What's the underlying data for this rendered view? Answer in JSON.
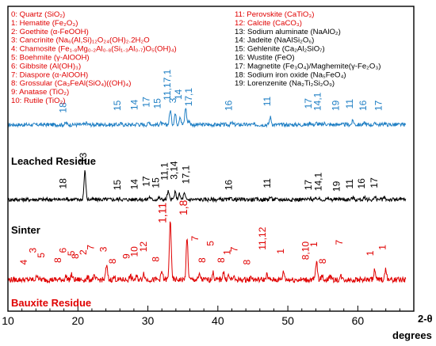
{
  "chart_data": {
    "type": "line",
    "x_unit_label": "2-θ",
    "x_title": "degrees",
    "xlim": [
      10,
      68
    ],
    "xticks": [
      10,
      20,
      30,
      40,
      50,
      60
    ],
    "colors": {
      "blue": "#1f7fc4",
      "black": "#000000",
      "red": "#e00000"
    },
    "legend_left": [
      "0: Quartz (SiO₂)",
      "1: Hematite (Fe₂O₃)",
      "2: Goethite (α-FeOOH)",
      "3: Cancrinite (Na₆(Al,Si)₁₂O₂₄(OH)₂.2H₂O",
      "4: Chamosite (Fe₁.₈Mg₀.₂Al₀.₈(Si₁.₃Al₀.₇)O₅(OH)₄)",
      "5: Boehmite (γ-AlOOH)",
      "6: Gibbsite (Al(OH)₃)",
      "7: Diaspore (α-AlOOH)",
      "8: Grossular (Ca₃FeAl(SiO₄)((OH)₄)",
      "9: Anatase (TiO₂)",
      "10: Rutile (TiO₂)"
    ],
    "legend_right": [
      {
        "text": "11: Perovskite (CaTiO₃)",
        "color": "red"
      },
      {
        "text": "12: Calcite (CaCO₃)",
        "color": "red"
      },
      {
        "text": "13: Sodium aluminate (NaAlO₂)",
        "color": "black"
      },
      {
        "text": "14: Jadeite (NaAlSi₂O₆)",
        "color": "black"
      },
      {
        "text": "15: Gehlenite (Ca₂Al₂SiO₇)",
        "color": "black"
      },
      {
        "text": "16: Wustite (FeO)",
        "color": "black"
      },
      {
        "text": "17: Magnetite (Fe₃O₄)/Maghemite(γ-Fe₂O₃)",
        "color": "black"
      },
      {
        "text": "18: Sodium iron oxide (Na₅FeO₄)",
        "color": "black"
      },
      {
        "text": "19: Lorenzenite (Na₂Ti₂Si₂O₉)",
        "color": "black"
      }
    ],
    "series": [
      {
        "name": "Leached Residue",
        "color": "blue",
        "baseline": 0.4,
        "peaks": [
          [
            18.3,
            0.05
          ],
          [
            21.2,
            0.05
          ],
          [
            26.1,
            0.03
          ],
          [
            28.5,
            0.04
          ],
          [
            30.2,
            0.08
          ],
          [
            31.8,
            0.05
          ],
          [
            33.2,
            0.42
          ],
          [
            33.9,
            0.32
          ],
          [
            34.6,
            0.25
          ],
          [
            35.4,
            0.5
          ],
          [
            35.9,
            0.12
          ],
          [
            42.0,
            0.05
          ],
          [
            47.5,
            0.22
          ],
          [
            53.2,
            0.07
          ],
          [
            54.1,
            0.05
          ],
          [
            55.3,
            0.05
          ],
          [
            57.4,
            0.03
          ],
          [
            59.3,
            0.12
          ],
          [
            61.0,
            0.05
          ],
          [
            62.6,
            0.05
          ],
          [
            63.8,
            0.05
          ]
        ],
        "labels": [
          {
            "text": "18",
            "x": 18.3,
            "y": 0.74
          },
          {
            "text": "15",
            "x": 26.1,
            "y": 0.8
          },
          {
            "text": "14",
            "x": 28.5,
            "y": 0.82
          },
          {
            "text": "17",
            "x": 30.2,
            "y": 0.9
          },
          {
            "text": "15",
            "x": 31.8,
            "y": 0.86
          },
          {
            "text": "11,17,1",
            "x": 33.2,
            "y": 1.1
          },
          {
            "text": "3",
            "x": 34.0,
            "y": 1.02
          },
          {
            "text": "14",
            "x": 34.8,
            "y": 1.12
          },
          {
            "text": "17,1",
            "x": 36.3,
            "y": 0.93
          },
          {
            "text": "16",
            "x": 42.0,
            "y": 0.8
          },
          {
            "text": "11",
            "x": 47.5,
            "y": 0.93
          },
          {
            "text": "17",
            "x": 53.4,
            "y": 0.86
          },
          {
            "text": "14,1",
            "x": 54.7,
            "y": 0.8
          },
          {
            "text": "19",
            "x": 57.3,
            "y": 0.8
          },
          {
            "text": "11",
            "x": 59.3,
            "y": 0.86
          },
          {
            "text": "16",
            "x": 61.2,
            "y": 0.8
          },
          {
            "text": "17",
            "x": 63.4,
            "y": 0.8
          }
        ]
      },
      {
        "name": "Sinter",
        "color": "black",
        "baseline": 0.4,
        "peaks": [
          [
            18.3,
            0.04
          ],
          [
            21.0,
            0.8
          ],
          [
            26.0,
            0.03
          ],
          [
            28.3,
            0.04
          ],
          [
            30.2,
            0.08
          ],
          [
            31.6,
            0.05
          ],
          [
            32.9,
            0.22
          ],
          [
            33.9,
            0.2
          ],
          [
            34.5,
            0.15
          ],
          [
            35.2,
            0.16
          ],
          [
            42.0,
            0.03
          ],
          [
            47.5,
            0.07
          ],
          [
            53.2,
            0.04
          ],
          [
            54.3,
            0.04
          ],
          [
            55.8,
            0.03
          ],
          [
            57.4,
            0.03
          ],
          [
            59.3,
            0.06
          ],
          [
            61.0,
            0.04
          ],
          [
            62.5,
            0.06
          ],
          [
            63.8,
            0.05
          ]
        ],
        "labels": [
          {
            "text": "18",
            "x": 18.3,
            "y": 0.7
          },
          {
            "text": "13",
            "x": 21.2,
            "y": 1.42
          },
          {
            "text": "15",
            "x": 26.1,
            "y": 0.66
          },
          {
            "text": "14",
            "x": 28.5,
            "y": 0.68
          },
          {
            "text": "17",
            "x": 30.2,
            "y": 0.76
          },
          {
            "text": "15",
            "x": 31.6,
            "y": 0.72
          },
          {
            "text": "11,1",
            "x": 32.8,
            "y": 0.94
          },
          {
            "text": "3,14",
            "x": 34.2,
            "y": 0.96
          },
          {
            "text": "17,1",
            "x": 35.9,
            "y": 0.84
          },
          {
            "text": "16",
            "x": 42.0,
            "y": 0.66
          },
          {
            "text": "11",
            "x": 47.5,
            "y": 0.72
          },
          {
            "text": "17",
            "x": 53.4,
            "y": 0.66
          },
          {
            "text": "14,1",
            "x": 54.8,
            "y": 0.64
          },
          {
            "text": "19",
            "x": 57.4,
            "y": 0.62
          },
          {
            "text": "11",
            "x": 59.3,
            "y": 0.7
          },
          {
            "text": "16",
            "x": 61.0,
            "y": 0.7
          },
          {
            "text": "17",
            "x": 62.8,
            "y": 0.72
          }
        ]
      },
      {
        "name": "Bauxite Residue",
        "color": "red",
        "baseline": 0.3,
        "peaks": [
          [
            14.2,
            0.1
          ],
          [
            18.3,
            0.07
          ],
          [
            19.1,
            0.1
          ],
          [
            21.4,
            0.04
          ],
          [
            22.3,
            0.06
          ],
          [
            24.1,
            0.28
          ],
          [
            25.2,
            0.05
          ],
          [
            27.5,
            0.07
          ],
          [
            28.4,
            0.06
          ],
          [
            29.4,
            0.14
          ],
          [
            32.0,
            0.16
          ],
          [
            33.2,
            1.22
          ],
          [
            35.6,
            0.82
          ],
          [
            37.4,
            0.1
          ],
          [
            39.3,
            0.14
          ],
          [
            40.8,
            0.16
          ],
          [
            41.5,
            0.08
          ],
          [
            42.2,
            0.05
          ],
          [
            44.8,
            0.06
          ],
          [
            47.0,
            0.1
          ],
          [
            49.4,
            0.16
          ],
          [
            54.1,
            0.36
          ],
          [
            54.9,
            0.08
          ],
          [
            56.0,
            0.08
          ],
          [
            57.6,
            0.07
          ],
          [
            62.4,
            0.2
          ],
          [
            64.0,
            0.2
          ]
        ],
        "labels": [
          {
            "text": "4",
            "x": 12.7,
            "y": 0.6
          },
          {
            "text": "3",
            "x": 14.0,
            "y": 0.84
          },
          {
            "text": "5",
            "x": 15.2,
            "y": 0.74
          },
          {
            "text": "8",
            "x": 17.6,
            "y": 0.64
          },
          {
            "text": "6",
            "x": 18.3,
            "y": 0.84
          },
          {
            "text": "5",
            "x": 19.5,
            "y": 0.78
          },
          {
            "text": "8",
            "x": 20.1,
            "y": 0.72
          },
          {
            "text": "2",
            "x": 21.2,
            "y": 0.8
          },
          {
            "text": "7",
            "x": 22.3,
            "y": 0.9
          },
          {
            "text": "3",
            "x": 24.1,
            "y": 0.86
          },
          {
            "text": "8",
            "x": 25.4,
            "y": 0.62
          },
          {
            "text": "9",
            "x": 27.4,
            "y": 0.72
          },
          {
            "text": "10",
            "x": 28.5,
            "y": 0.76
          },
          {
            "text": "12",
            "x": 29.8,
            "y": 0.86
          },
          {
            "text": "8",
            "x": 31.6,
            "y": 0.66
          },
          {
            "text": "1,11",
            "x": 32.6,
            "y": 1.44
          },
          {
            "text": "1,8",
            "x": 35.6,
            "y": 1.6
          },
          {
            "text": "7",
            "x": 37.2,
            "y": 1.08
          },
          {
            "text": "8",
            "x": 38.2,
            "y": 0.64
          },
          {
            "text": "5",
            "x": 39.4,
            "y": 0.98
          },
          {
            "text": "8",
            "x": 40.9,
            "y": 0.64
          },
          {
            "text": "1",
            "x": 41.8,
            "y": 0.8
          },
          {
            "text": "7",
            "x": 42.8,
            "y": 0.86
          },
          {
            "text": "8",
            "x": 44.6,
            "y": 0.6
          },
          {
            "text": "11,12",
            "x": 46.8,
            "y": 0.9
          },
          {
            "text": "1",
            "x": 49.4,
            "y": 0.82
          },
          {
            "text": "8,10",
            "x": 53.0,
            "y": 0.7
          },
          {
            "text": "1",
            "x": 54.2,
            "y": 0.96
          },
          {
            "text": "8",
            "x": 55.4,
            "y": 0.62
          },
          {
            "text": "7",
            "x": 57.8,
            "y": 1.0
          },
          {
            "text": "1",
            "x": 62.2,
            "y": 0.78
          },
          {
            "text": "1",
            "x": 64.0,
            "y": 0.9
          }
        ]
      }
    ]
  }
}
